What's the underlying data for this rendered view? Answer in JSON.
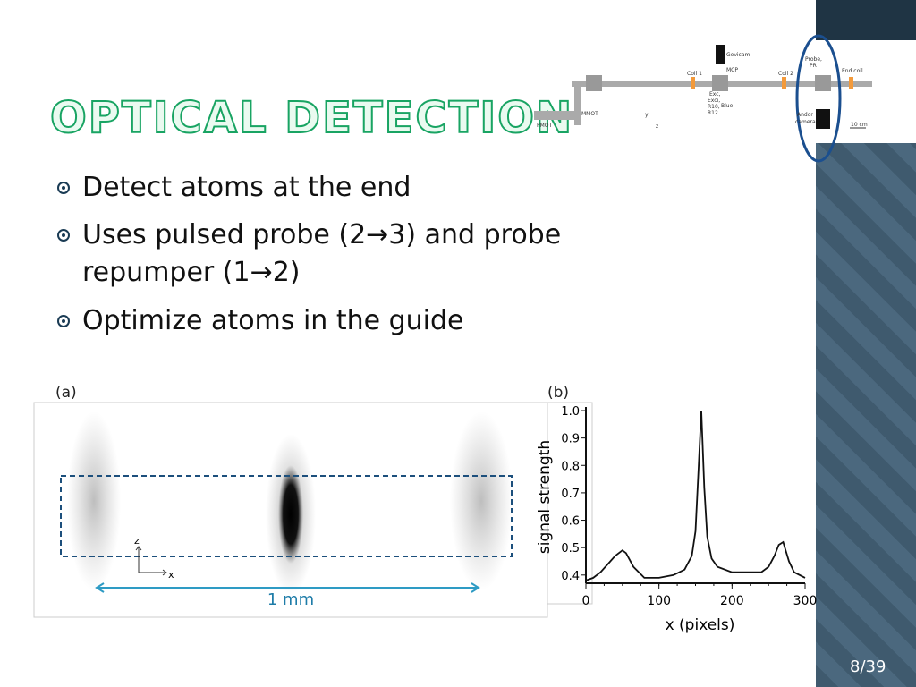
{
  "title": "OPTICAL DETECTION",
  "bullets": [
    "Detect atoms at the end",
    "Uses pulsed probe (2→3) and probe repumper (1→2)",
    "Optimize atoms in the guide"
  ],
  "page_number": "8/39",
  "schematic": {
    "labels": [
      "Gevicam",
      "MCP",
      "Coil 1",
      "Coil 2",
      "Probe,",
      "PR",
      "End coil",
      "Exc,",
      "Exci,",
      "R10,",
      "R12",
      "Blue",
      "MMOT",
      "PMOT",
      "Andor",
      "camera",
      "10 cm",
      "y",
      "z"
    ]
  },
  "figure_a": {
    "label": "(a)",
    "axis_z": "z",
    "axis_x": "x",
    "scale": "1 mm"
  },
  "chart_data": {
    "type": "line",
    "label": "(b)",
    "x_label": "x (pixels)",
    "y_label": "signal strength",
    "x": [
      0,
      10,
      20,
      30,
      40,
      50,
      55,
      65,
      80,
      100,
      120,
      135,
      145,
      150,
      154,
      158,
      162,
      166,
      172,
      180,
      200,
      220,
      240,
      250,
      258,
      264,
      270,
      278,
      285,
      300
    ],
    "values": [
      0.38,
      0.39,
      0.41,
      0.44,
      0.47,
      0.49,
      0.48,
      0.43,
      0.39,
      0.39,
      0.4,
      0.42,
      0.47,
      0.56,
      0.78,
      1.0,
      0.72,
      0.54,
      0.46,
      0.43,
      0.41,
      0.41,
      0.41,
      0.43,
      0.47,
      0.51,
      0.52,
      0.45,
      0.41,
      0.39
    ],
    "color": "#111111",
    "xlim": [
      0,
      300
    ],
    "ylim": [
      0.37,
      1.0
    ],
    "xticks": [
      0,
      100,
      200,
      300
    ],
    "yticks": [
      0.4,
      0.5,
      0.6,
      0.7,
      0.8,
      0.9,
      {
        "value": 1.0,
        "label": "1.0"
      }
    ]
  }
}
